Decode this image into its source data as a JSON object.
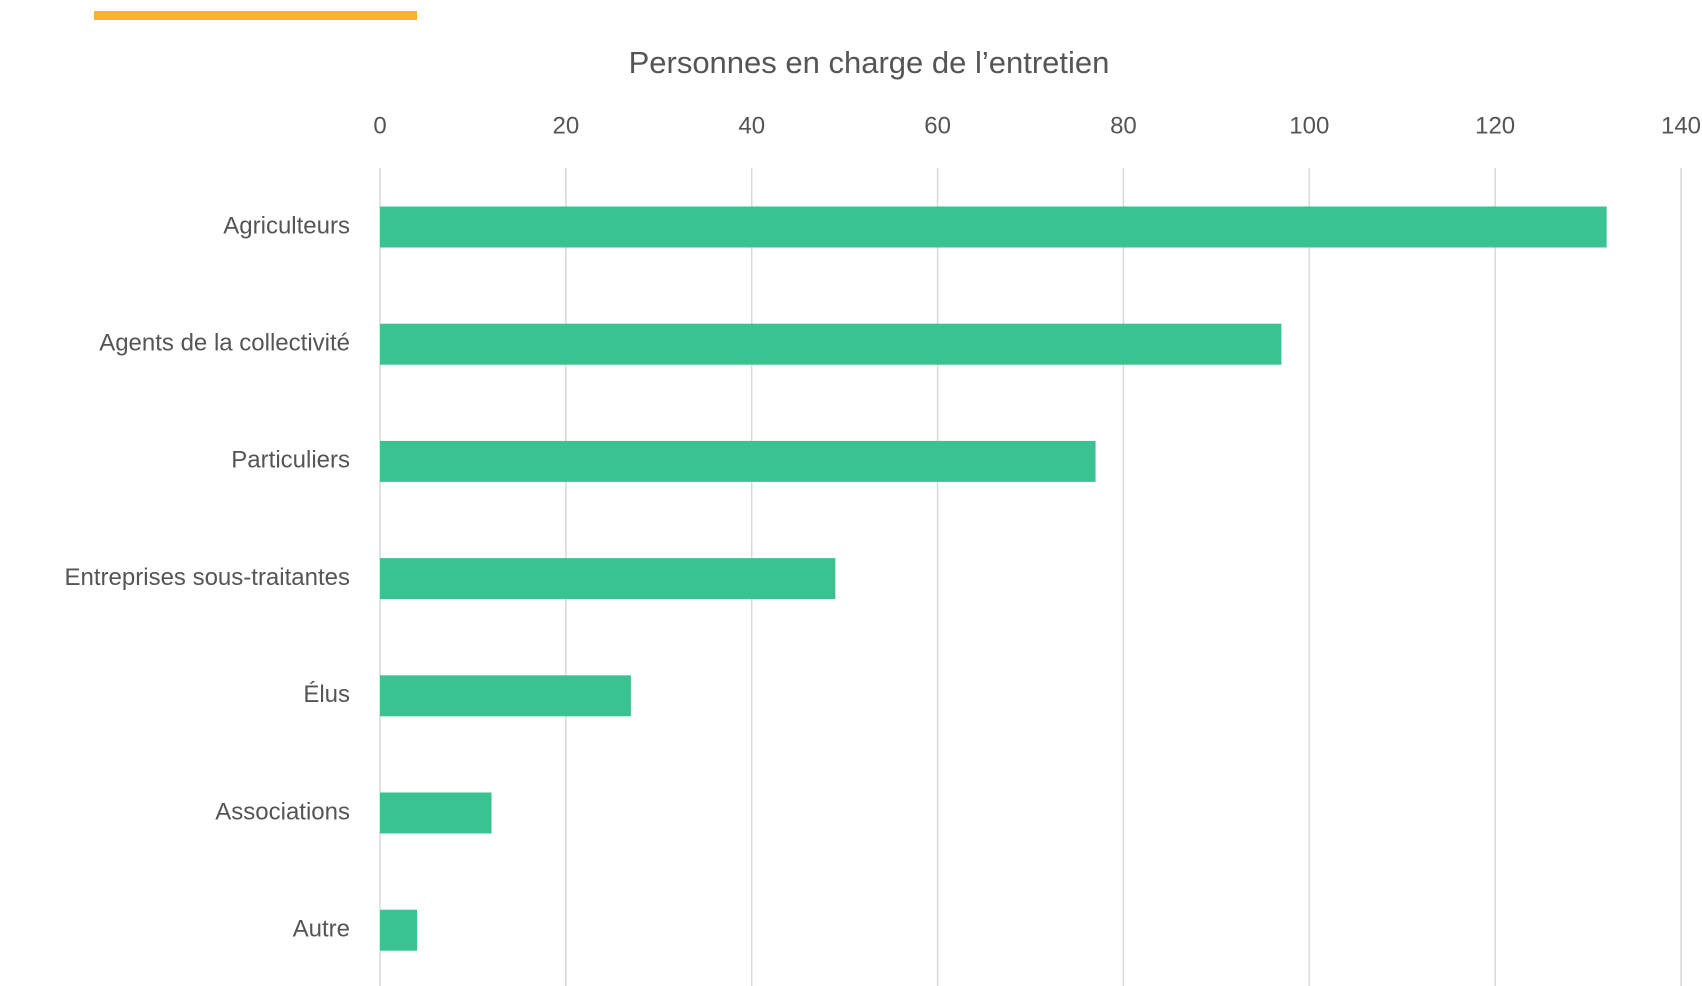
{
  "chart_data": {
    "type": "bar",
    "orientation": "horizontal",
    "title": "Personnes en charge de l’entretien",
    "categories": [
      "Agriculteurs",
      "Agents de la collectivité",
      "Particuliers",
      "Entreprises sous-traitantes",
      "Élus",
      "Associations",
      "Autre"
    ],
    "values": [
      132,
      97,
      77,
      49,
      27,
      12,
      4
    ],
    "color": "#3ac291",
    "xlim": [
      0,
      140
    ],
    "xticks": [
      0,
      20,
      40,
      60,
      80,
      100,
      120,
      140
    ],
    "grid": true
  }
}
